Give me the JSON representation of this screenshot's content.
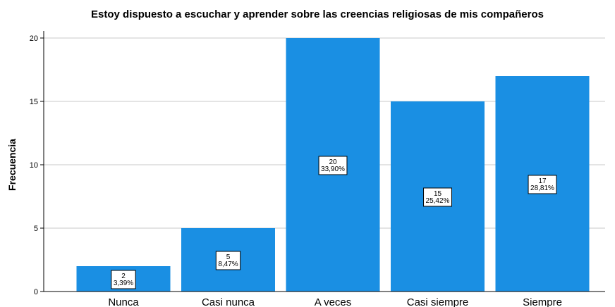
{
  "chart_data": {
    "type": "bar",
    "title": "Estoy dispuesto a escuchar y aprender sobre las creencias religiosas de mis compañeros",
    "xlabel": "",
    "ylabel": "Frecuencia",
    "ylim": [
      0,
      20
    ],
    "yticks": [
      "0",
      "5",
      "10",
      "15",
      "20"
    ],
    "grid": true,
    "bar_color": "#1a8fe3",
    "categories": [
      "Nunca",
      "Casi nunca",
      "A veces",
      "Casi siempre",
      "Siempre"
    ],
    "values": [
      2,
      5,
      20,
      15,
      17
    ],
    "value_labels": [
      "2",
      "5",
      "20",
      "15",
      "17"
    ],
    "percent_labels": [
      "3,39%",
      "8,47%",
      "33,90%",
      "25,42%",
      "28,81%"
    ]
  }
}
